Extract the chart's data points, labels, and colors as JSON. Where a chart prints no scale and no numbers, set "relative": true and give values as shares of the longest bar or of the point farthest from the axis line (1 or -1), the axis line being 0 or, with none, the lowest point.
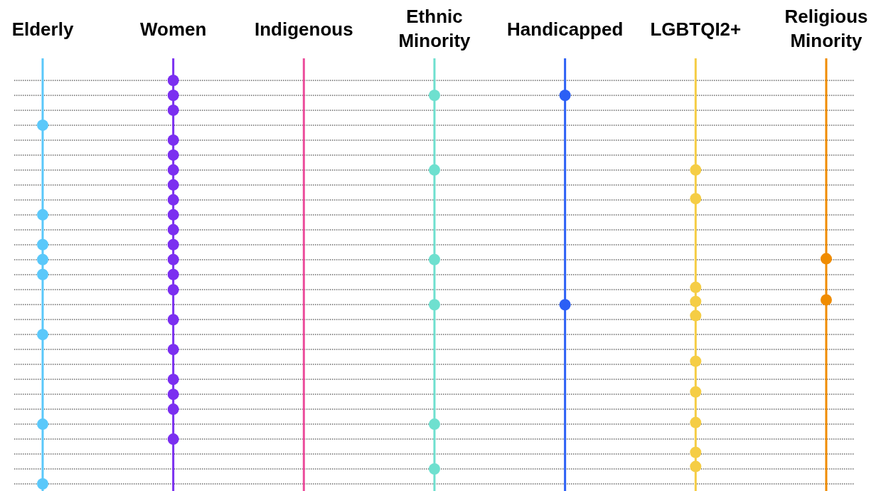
{
  "chart_data": {
    "type": "scatter",
    "relative": true,
    "grid": "y",
    "marker": "circle",
    "tick_labels": "x",
    "categories": [
      "Elderly",
      "Women",
      "Indigenous",
      "Ethnic\nMinority",
      "Handicapped",
      "LGBTQI2+",
      "Religious\nMinority"
    ],
    "ref_lines": [
      {
        "axis": "x",
        "value": "Elderly",
        "color": "#5ac8fa"
      },
      {
        "axis": "x",
        "value": "Women",
        "color": "#7b2ff0"
      },
      {
        "axis": "x",
        "value": "Indigenous",
        "color": "#ec4e9c"
      },
      {
        "axis": "x",
        "value": "Ethnic\nMinority",
        "color": "#6ee0cf"
      },
      {
        "axis": "x",
        "value": "Handicapped",
        "color": "#2b5ff5"
      },
      {
        "axis": "x",
        "value": "LGBTQI2+",
        "color": "#f5cd45"
      },
      {
        "axis": "x",
        "value": "Religious\nMinority",
        "color": "#f08c00"
      }
    ],
    "series": [
      {
        "color": "#5ac8fa",
        "x": [
          "Elderly",
          "Elderly",
          "Elderly",
          "Elderly",
          "Elderly",
          "Elderly",
          "Elderly",
          "Elderly"
        ],
        "values": [
          0.889,
          0.667,
          0.593,
          0.556,
          0.519,
          0.37,
          0.148,
          0
        ]
      },
      {
        "color": "#7b2ff0",
        "x": [
          "Women",
          "Women",
          "Women",
          "Women",
          "Women",
          "Women",
          "Women",
          "Women",
          "Women",
          "Women",
          "Women",
          "Women",
          "Women",
          "Women",
          "Women",
          "Women",
          "Women",
          "Women",
          "Women",
          "Women"
        ],
        "values": [
          1,
          0.963,
          0.926,
          0.852,
          0.815,
          0.778,
          0.741,
          0.704,
          0.667,
          0.63,
          0.593,
          0.556,
          0.519,
          0.481,
          0.407,
          0.333,
          0.259,
          0.222,
          0.185,
          0.111
        ]
      },
      {
        "color": "#6ee0cf",
        "x": [
          "Ethnic\nMinority",
          "Ethnic\nMinority",
          "Ethnic\nMinority",
          "Ethnic\nMinority",
          "Ethnic\nMinority",
          "Ethnic\nMinority"
        ],
        "values": [
          0.963,
          0.778,
          0.556,
          0.444,
          0.148,
          0.037
        ]
      },
      {
        "color": "#2b5ff5",
        "x": [
          "Handicapped",
          "Handicapped"
        ],
        "values": [
          0.963,
          0.444
        ]
      },
      {
        "color": "#f5cd45",
        "x": [
          "LGBTQI2+",
          "LGBTQI2+",
          "LGBTQI2+",
          "LGBTQI2+",
          "LGBTQI2+",
          "LGBTQI2+",
          "LGBTQI2+",
          "LGBTQI2+",
          "LGBTQI2+",
          "LGBTQI2+"
        ],
        "values": [
          0.778,
          0.707,
          0.487,
          0.452,
          0.417,
          0.304,
          0.228,
          0.152,
          0.078,
          0.043
        ]
      },
      {
        "color": "#f08c00",
        "x": [
          "Religious\nMinority",
          "Religious\nMinority"
        ],
        "values": [
          0.558,
          0.456
        ]
      }
    ]
  }
}
